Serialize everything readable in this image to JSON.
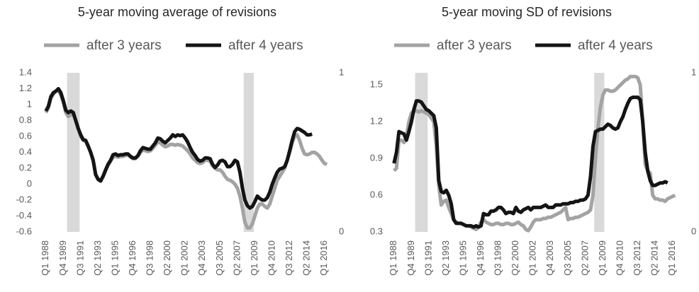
{
  "chart_data": [
    {
      "type": "line",
      "title": "5-year moving average of revisions",
      "categories": [
        "Q1 1988",
        null,
        null,
        null,
        null,
        null,
        null,
        "Q4 1989",
        null,
        null,
        null,
        null,
        null,
        null,
        "Q3 1991",
        null,
        null,
        null,
        null,
        null,
        null,
        "Q2 1993",
        null,
        null,
        null,
        null,
        null,
        null,
        "Q1 1995",
        null,
        null,
        null,
        null,
        null,
        null,
        "Q4 1996",
        null,
        null,
        null,
        null,
        null,
        null,
        "Q3 1998",
        null,
        null,
        null,
        null,
        null,
        null,
        "Q2 2000",
        null,
        null,
        null,
        null,
        null,
        null,
        "Q1 2002",
        null,
        null,
        null,
        null,
        null,
        null,
        "Q4 2003",
        null,
        null,
        null,
        null,
        null,
        null,
        "Q3 2005",
        null,
        null,
        null,
        null,
        null,
        null,
        "Q2 2007",
        null,
        null,
        null,
        null,
        null,
        null,
        "Q1 2009",
        null,
        null,
        null,
        null,
        null,
        null,
        "Q4 2010",
        null,
        null,
        null,
        null,
        null,
        null,
        "Q3 2012",
        null,
        null,
        null,
        null,
        null,
        null,
        "Q2 2014",
        null,
        null,
        null,
        null,
        null,
        null,
        "Q1 2016",
        null
      ],
      "ylim": [
        -0.6,
        1.4
      ],
      "yticks": [
        -0.6,
        -0.4,
        -0.2,
        0,
        0.2,
        0.4,
        0.6,
        0.8,
        1,
        1.2,
        1.4
      ],
      "y2lim": [
        0,
        1
      ],
      "y2ticks": [
        0,
        1
      ],
      "series": [
        {
          "type": "bar",
          "axis": "y2",
          "color": "#d9d9d9",
          "values": [
            0,
            0,
            0,
            0,
            0,
            0,
            0,
            0,
            0,
            1,
            1,
            1,
            1,
            1,
            0,
            0,
            0,
            0,
            0,
            0,
            0,
            0,
            0,
            0,
            0,
            0,
            0,
            0,
            0,
            0,
            0,
            0,
            0,
            0,
            0,
            0,
            0,
            0,
            0,
            0,
            0,
            0,
            0,
            0,
            0,
            0,
            0,
            0,
            0,
            0,
            0,
            0,
            0,
            0,
            0,
            0,
            0,
            0,
            0,
            0,
            0,
            0,
            0,
            0,
            0,
            0,
            0,
            0,
            0,
            0,
            0,
            0,
            0,
            0,
            0,
            0,
            0,
            0,
            0,
            0,
            1,
            1,
            1,
            1,
            0,
            0,
            0,
            0,
            0,
            0,
            0,
            0,
            0,
            0,
            0,
            0,
            0,
            0,
            0,
            0,
            0,
            0,
            0,
            0,
            0,
            0,
            0,
            0,
            0,
            0,
            0,
            0,
            0,
            0
          ]
        },
        {
          "name": "after 3 years",
          "color": "#a3a3a3",
          "values": [
            0.9,
            0.96,
            1.08,
            1.13,
            1.17,
            1.18,
            1.12,
            1.03,
            0.9,
            0.85,
            0.87,
            0.88,
            0.8,
            0.7,
            0.6,
            0.55,
            0.54,
            0.47,
            0.4,
            0.3,
            0.12,
            0.06,
            0.05,
            0.1,
            0.17,
            0.24,
            0.29,
            0.34,
            0.35,
            0.34,
            0.35,
            0.35,
            0.36,
            0.37,
            0.34,
            0.32,
            0.32,
            0.35,
            0.4,
            0.43,
            0.42,
            0.41,
            0.42,
            0.45,
            0.49,
            0.53,
            0.52,
            0.49,
            0.47,
            0.48,
            0.5,
            0.5,
            0.49,
            0.5,
            0.49,
            0.48,
            0.45,
            0.42,
            0.38,
            0.33,
            0.3,
            0.27,
            0.26,
            0.27,
            0.3,
            0.3,
            0.29,
            0.23,
            0.2,
            0.18,
            0.18,
            0.15,
            0.1,
            0.06,
            0.05,
            0.03,
            0,
            -0.05,
            -0.15,
            -0.3,
            -0.48,
            -0.55,
            -0.55,
            -0.5,
            -0.4,
            -0.3,
            -0.25,
            -0.25,
            -0.28,
            -0.3,
            -0.25,
            -0.15,
            -0.05,
            0.05,
            0.1,
            0.15,
            0.2,
            0.3,
            0.4,
            0.52,
            0.6,
            0.62,
            0.55,
            0.45,
            0.38,
            0.37,
            0.38,
            0.4,
            0.4,
            0.38,
            0.35,
            0.3,
            0.26,
            0.25
          ]
        },
        {
          "name": "after 4 years",
          "color": "#141414",
          "values": [
            0.92,
            0.98,
            1.1,
            1.15,
            1.17,
            1.2,
            1.15,
            1.05,
            0.93,
            0.9,
            0.92,
            0.9,
            0.8,
            0.7,
            0.62,
            0.56,
            0.55,
            0.48,
            0.4,
            0.3,
            0.12,
            0.06,
            0.04,
            0.1,
            0.18,
            0.25,
            0.3,
            0.37,
            0.38,
            0.36,
            0.37,
            0.37,
            0.38,
            0.38,
            0.35,
            0.33,
            0.33,
            0.36,
            0.42,
            0.46,
            0.45,
            0.44,
            0.44,
            0.48,
            0.52,
            0.58,
            0.57,
            0.54,
            0.52,
            0.55,
            0.58,
            0.62,
            0.6,
            0.62,
            0.61,
            0.62,
            0.58,
            0.53,
            0.46,
            0.4,
            0.36,
            0.31,
            0.29,
            0.3,
            0.33,
            0.33,
            0.32,
            0.25,
            0.21,
            0.24,
            0.29,
            0.3,
            0.28,
            0.22,
            0.22,
            0.25,
            0.3,
            0.28,
            0.15,
            -0.05,
            -0.2,
            -0.27,
            -0.3,
            -0.28,
            -0.22,
            -0.15,
            -0.18,
            -0.2,
            -0.2,
            -0.17,
            -0.1,
            0,
            0.08,
            0.15,
            0.19,
            0.2,
            0.22,
            0.3,
            0.42,
            0.55,
            0.66,
            0.7,
            0.69,
            0.67,
            0.65,
            0.62,
            0.62,
            0.63,
            null,
            null,
            null,
            null,
            null,
            null
          ]
        }
      ]
    },
    {
      "type": "line",
      "title": "5-year moving SD of revisions",
      "categories": [
        "Q1 1988",
        null,
        null,
        null,
        null,
        null,
        null,
        "Q4 1989",
        null,
        null,
        null,
        null,
        null,
        null,
        "Q3 1991",
        null,
        null,
        null,
        null,
        null,
        null,
        "Q2 1993",
        null,
        null,
        null,
        null,
        null,
        null,
        "Q1 1995",
        null,
        null,
        null,
        null,
        null,
        null,
        "Q4 1996",
        null,
        null,
        null,
        null,
        null,
        null,
        "Q3 1998",
        null,
        null,
        null,
        null,
        null,
        null,
        "Q2 2000",
        null,
        null,
        null,
        null,
        null,
        null,
        "Q1 2002",
        null,
        null,
        null,
        null,
        null,
        null,
        "Q4 2003",
        null,
        null,
        null,
        null,
        null,
        null,
        "Q3 2005",
        null,
        null,
        null,
        null,
        null,
        null,
        "Q2 2007",
        null,
        null,
        null,
        null,
        null,
        null,
        "Q1 2009",
        null,
        null,
        null,
        null,
        null,
        null,
        "Q4 2010",
        null,
        null,
        null,
        null,
        null,
        null,
        "Q3 2012",
        null,
        null,
        null,
        null,
        null,
        null,
        "Q2 2014",
        null,
        null,
        null,
        null,
        null,
        null,
        "Q1 2016",
        null
      ],
      "ylim": [
        0.3,
        1.6
      ],
      "yticks": [
        0.3,
        0.6,
        0.9,
        1.2,
        1.5
      ],
      "y2lim": [
        0,
        1
      ],
      "y2ticks": [
        0,
        1
      ],
      "series": [
        {
          "type": "bar",
          "axis": "y2",
          "color": "#d9d9d9",
          "values": [
            0,
            0,
            0,
            0,
            0,
            0,
            0,
            0,
            0,
            1,
            1,
            1,
            1,
            1,
            0,
            0,
            0,
            0,
            0,
            0,
            0,
            0,
            0,
            0,
            0,
            0,
            0,
            0,
            0,
            0,
            0,
            0,
            0,
            0,
            0,
            0,
            0,
            0,
            0,
            0,
            0,
            0,
            0,
            0,
            0,
            0,
            0,
            0,
            0,
            0,
            0,
            0,
            0,
            0,
            0,
            0,
            0,
            0,
            0,
            0,
            0,
            0,
            0,
            0,
            0,
            0,
            0,
            0,
            0,
            0,
            0,
            0,
            0,
            0,
            0,
            0,
            0,
            0,
            0,
            0,
            0,
            1,
            1,
            1,
            1,
            0,
            0,
            0,
            0,
            0,
            0,
            0,
            0,
            0,
            0,
            0,
            0,
            0,
            0,
            0,
            0,
            0,
            0,
            0,
            0,
            0,
            0,
            0,
            0,
            0,
            0,
            0,
            0,
            0
          ]
        },
        {
          "name": "after 3 years",
          "color": "#a3a3a3",
          "values": [
            0.8,
            0.82,
            1.05,
            1.05,
            1.03,
            1.08,
            1.2,
            1.27,
            1.29,
            1.29,
            1.28,
            1.29,
            1.28,
            1.27,
            1.26,
            1.23,
            1.2,
            1,
            0.68,
            0.52,
            0.55,
            0.56,
            0.5,
            0.45,
            0.4,
            0.38,
            0.37,
            0.37,
            0.36,
            0.35,
            0.35,
            0.34,
            0.33,
            0.32,
            0.34,
            0.38,
            0.4,
            0.38,
            0.37,
            0.36,
            0.36,
            0.37,
            0.37,
            0.36,
            0.36,
            0.37,
            0.37,
            0.36,
            0.36,
            0.37,
            0.38,
            0.36,
            0.35,
            0.32,
            0.31,
            0.34,
            0.38,
            0.4,
            0.4,
            0.4,
            0.41,
            0.41,
            0.42,
            0.42,
            0.43,
            0.44,
            0.45,
            0.46,
            0.48,
            0.5,
            0.4,
            0.41,
            0.41,
            0.42,
            0.42,
            0.43,
            0.44,
            0.45,
            0.46,
            0.48,
            0.6,
            0.9,
            1.15,
            1.32,
            1.42,
            1.46,
            1.46,
            1.45,
            1.45,
            1.46,
            1.48,
            1.5,
            1.52,
            1.54,
            1.55,
            1.57,
            1.57,
            1.57,
            1.56,
            1.5,
            1.2,
            0.85,
            0.8,
            0.78,
            0.6,
            0.57,
            0.57,
            0.56,
            0.56,
            0.55,
            0.57,
            0.58,
            0.59,
            0.6
          ]
        },
        {
          "name": "after 4 years",
          "color": "#141414",
          "values": [
            0.86,
            0.95,
            1.12,
            1.11,
            1.1,
            1.05,
            1.12,
            1.2,
            1.3,
            1.37,
            1.37,
            1.36,
            1.33,
            1.3,
            1.29,
            1.27,
            1.25,
            1.15,
            0.72,
            0.63,
            0.62,
            0.64,
            0.6,
            0.53,
            0.4,
            0.37,
            0.37,
            0.37,
            0.36,
            0.35,
            0.35,
            0.35,
            0.34,
            0.35,
            0.34,
            0.35,
            0.45,
            0.44,
            0.44,
            0.47,
            0.47,
            0.48,
            0.5,
            0.5,
            0.48,
            0.45,
            0.46,
            0.46,
            0.45,
            0.5,
            0.47,
            0.46,
            0.48,
            0.49,
            0.5,
            0.48,
            0.5,
            0.5,
            0.5,
            0.5,
            0.51,
            0.52,
            0.5,
            0.5,
            0.5,
            0.52,
            0.52,
            0.52,
            0.53,
            0.53,
            0.53,
            0.54,
            0.54,
            0.55,
            0.55,
            0.56,
            0.56,
            0.57,
            0.6,
            0.75,
            1,
            1.12,
            1.13,
            1.14,
            1.14,
            1.16,
            1.18,
            1.17,
            1.15,
            1.14,
            1.15,
            1.2,
            1.24,
            1.3,
            1.35,
            1.39,
            1.4,
            1.4,
            1.4,
            1.38,
            1.2,
            0.95,
            0.8,
            0.72,
            0.68,
            0.68,
            0.69,
            0.7,
            0.7,
            0.71,
            0.7,
            null,
            null,
            null
          ]
        }
      ]
    }
  ]
}
